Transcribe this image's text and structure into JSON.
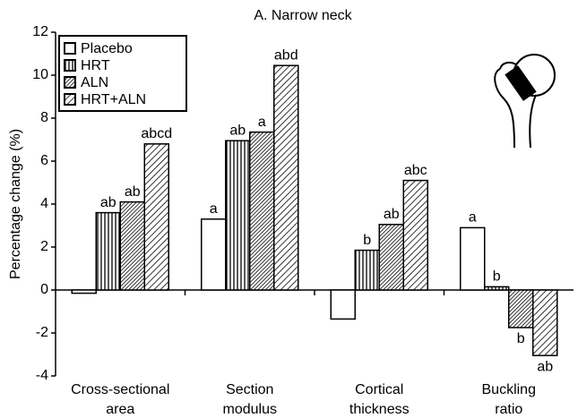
{
  "chart_data": {
    "type": "bar",
    "title": "A. Narrow neck",
    "ylabel": "Percentage change (%)",
    "categories": [
      [
        "Cross-sectional",
        "area"
      ],
      [
        "Section",
        "modulus"
      ],
      [
        "Cortical",
        "thickness"
      ],
      [
        "Buckling",
        "ratio"
      ]
    ],
    "series": [
      {
        "name": "Placebo",
        "pattern": "none",
        "color": "#000000",
        "values": [
          -0.15,
          3.3,
          -1.35,
          2.9
        ],
        "letters": [
          null,
          "a",
          null,
          "a"
        ]
      },
      {
        "name": "HRT",
        "pattern": "vertical",
        "color": "#000000",
        "values": [
          3.6,
          6.95,
          1.85,
          0.15
        ],
        "letters": [
          "ab",
          "ab",
          "b",
          "b"
        ]
      },
      {
        "name": "ALN",
        "pattern": "diagonal-dense",
        "color": "#000000",
        "values": [
          4.1,
          7.35,
          3.05,
          -1.75
        ],
        "letters": [
          "ab",
          "a",
          "ab",
          "b"
        ]
      },
      {
        "name": "HRT+ALN",
        "pattern": "diagonal",
        "color": "#000000",
        "values": [
          6.8,
          10.45,
          5.1,
          -3.05
        ],
        "letters": [
          "abcd",
          "abd",
          "abc",
          "ab"
        ]
      }
    ],
    "ylim": [
      -4,
      12
    ],
    "yticks": [
      -4,
      -2,
      0,
      2,
      4,
      6,
      8,
      10,
      12
    ],
    "legend": "upper left"
  }
}
